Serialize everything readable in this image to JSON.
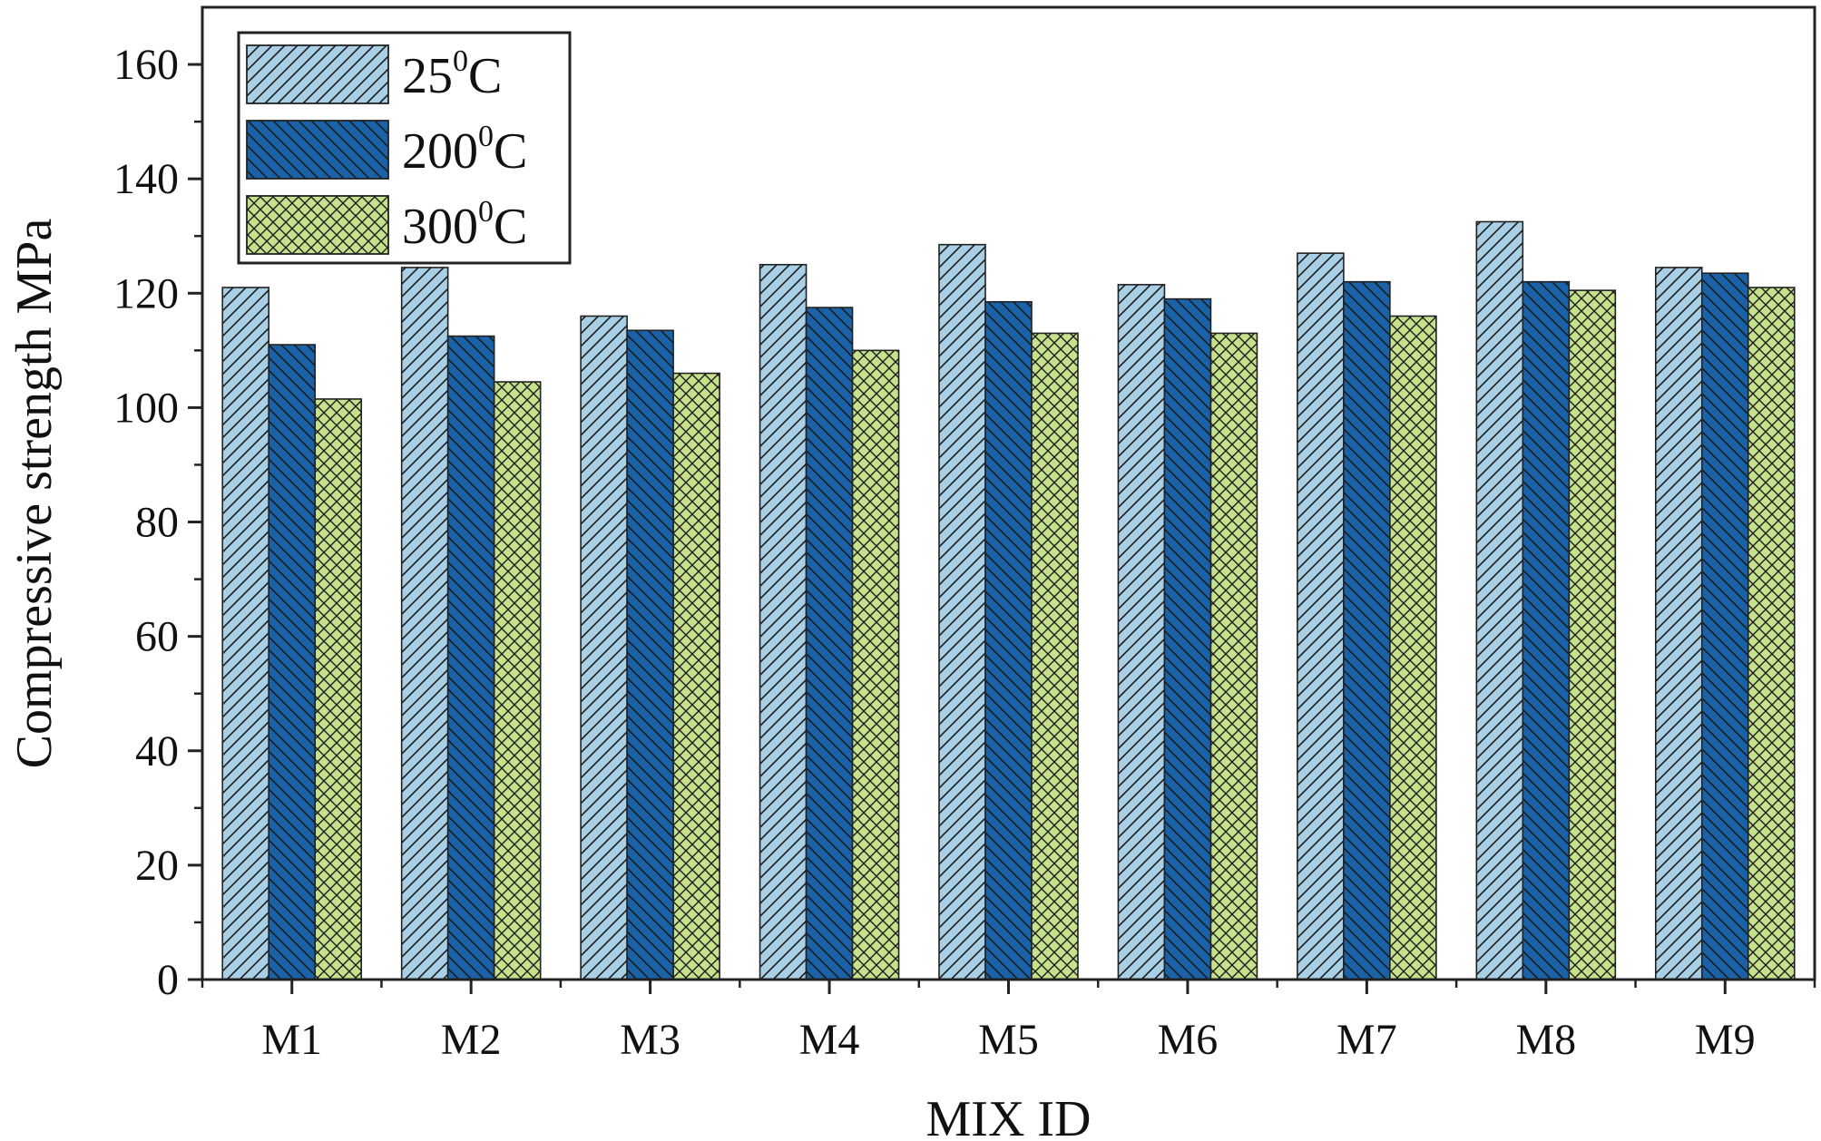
{
  "chart_data": {
    "type": "bar",
    "title": "",
    "xlabel": "MIX ID",
    "ylabel": "Compressive strength MPa",
    "ylim": [
      0,
      170
    ],
    "yticks": [
      0,
      20,
      40,
      60,
      80,
      100,
      120,
      140,
      160
    ],
    "categories": [
      "M1",
      "M2",
      "M3",
      "M4",
      "M5",
      "M6",
      "M7",
      "M8",
      "M9"
    ],
    "legend_position": "top-left",
    "grid": false,
    "series": [
      {
        "name": "25",
        "unit": "C",
        "superscript": "0",
        "color": "#a9cfe6",
        "pattern": "diagonal-right",
        "values": [
          121,
          124.5,
          116,
          125,
          128.5,
          121.5,
          127,
          132.5,
          124.5
        ]
      },
      {
        "name": "200",
        "unit": "C",
        "superscript": "0",
        "color": "#1a62a8",
        "pattern": "diagonal-left",
        "values": [
          111,
          112.5,
          113.5,
          117.5,
          118.5,
          119,
          122,
          122,
          123.5
        ]
      },
      {
        "name": "300",
        "unit": "C",
        "superscript": "0",
        "color": "#c6e18c",
        "pattern": "crosshatch",
        "values": [
          101.5,
          104.5,
          106,
          110,
          113,
          113,
          116,
          120.5,
          121
        ]
      }
    ]
  }
}
